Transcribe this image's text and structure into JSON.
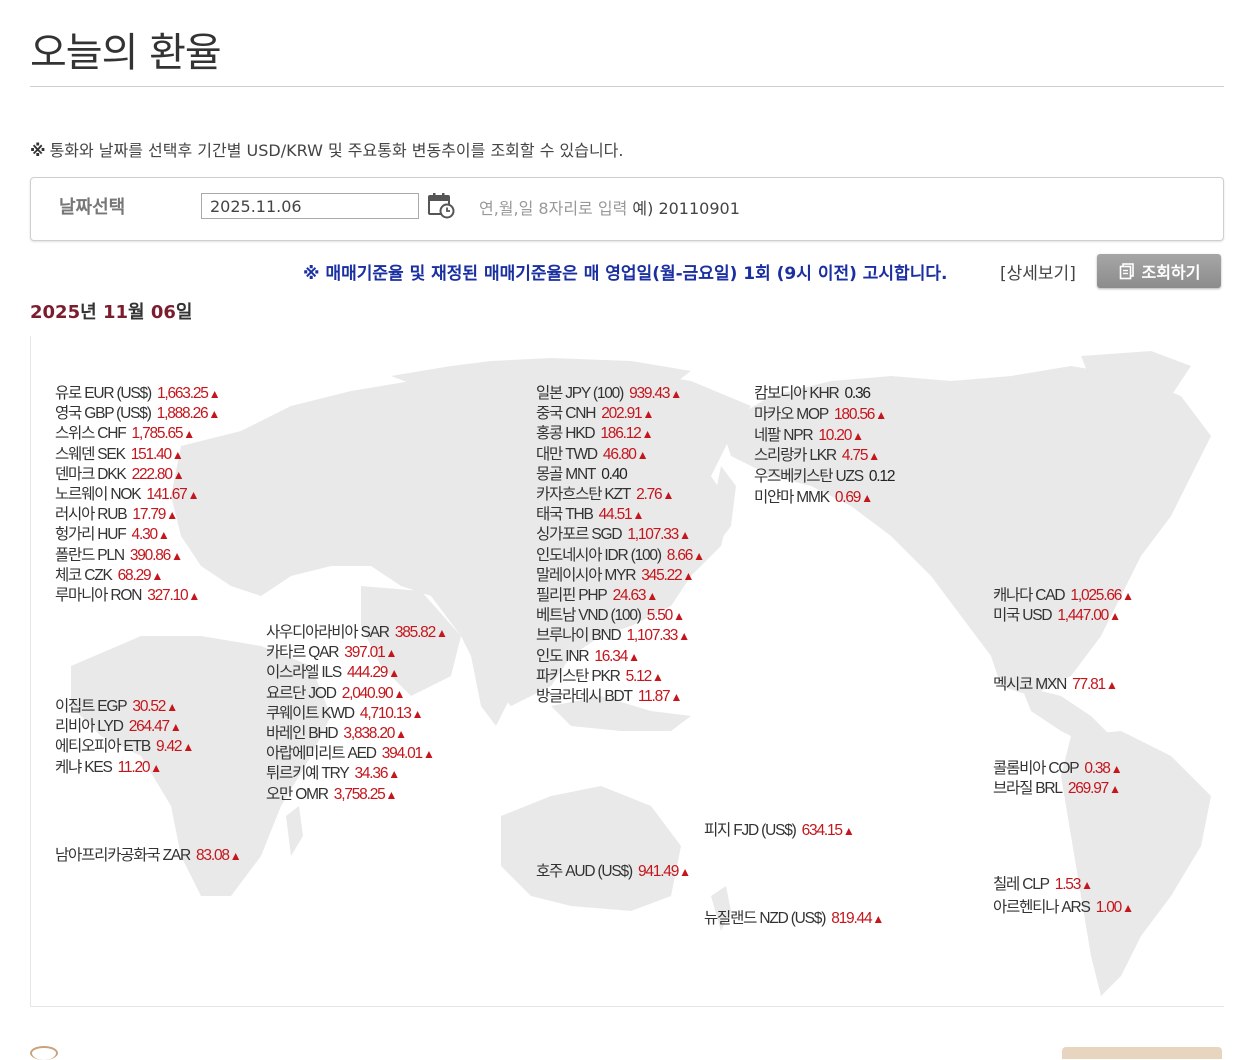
{
  "page": {
    "title": "오늘의 환율",
    "notice_mark": "※",
    "notice": "통화와 날짜를 선택후 기간별 USD/KRW 및 주요통화 변동추이를 조회할 수 있습니다."
  },
  "search": {
    "label": "날짜선택",
    "date_value": "2025.11.06",
    "hint": "연,월,일 8자리로 입력",
    "example": "예) 20110901"
  },
  "announcement": {
    "text": "※ 매매기준율 및 재정된 매매기준율은 매 영업일(월-금요일) 1회 (9시 이전) 고시합니다.",
    "detail_link": "[상세보기]",
    "query_button": "조회하기"
  },
  "display_date": {
    "year": "2025",
    "year_unit": "년 ",
    "month": "11",
    "month_unit": "월 ",
    "day": "06",
    "day_unit": "일"
  },
  "rates": {
    "europe": [
      {
        "label": "유로 EUR (US$)",
        "value": "1,663.25",
        "trend": "up"
      },
      {
        "label": "영국 GBP (US$)",
        "value": "1,888.26",
        "trend": "up"
      },
      {
        "label": "스위스 CHF",
        "value": "1,785.65",
        "trend": "up"
      },
      {
        "label": "스웨덴 SEK",
        "value": "151.40",
        "trend": "up"
      },
      {
        "label": "덴마크 DKK",
        "value": "222.80",
        "trend": "up"
      },
      {
        "label": "노르웨이 NOK",
        "value": "141.67",
        "trend": "up"
      },
      {
        "label": "러시아 RUB",
        "value": "17.79",
        "trend": "up"
      },
      {
        "label": "헝가리 HUF",
        "value": "4.30",
        "trend": "up"
      },
      {
        "label": "폴란드 PLN",
        "value": "390.86",
        "trend": "up"
      },
      {
        "label": "체코 CZK",
        "value": "68.29",
        "trend": "up"
      },
      {
        "label": "루마니아 RON",
        "value": "327.10",
        "trend": "up"
      }
    ],
    "middle_east": [
      {
        "label": "사우디아라비아 SAR",
        "value": "385.82",
        "trend": "up"
      },
      {
        "label": "카타르 QAR",
        "value": "397.01",
        "trend": "up"
      },
      {
        "label": "이스라엘 ILS",
        "value": "444.29",
        "trend": "up"
      },
      {
        "label": "요르단 JOD",
        "value": "2,040.90",
        "trend": "up"
      },
      {
        "label": "쿠웨이트 KWD",
        "value": "4,710.13",
        "trend": "up"
      },
      {
        "label": "바레인 BHD",
        "value": "3,838.20",
        "trend": "up"
      },
      {
        "label": "아랍에미리트 AED",
        "value": "394.01",
        "trend": "up"
      },
      {
        "label": "튀르키예 TRY",
        "value": "34.36",
        "trend": "up"
      },
      {
        "label": "오만 OMR",
        "value": "3,758.25",
        "trend": "up"
      }
    ],
    "africa": [
      {
        "label": "이집트 EGP",
        "value": "30.52",
        "trend": "up"
      },
      {
        "label": "리비아 LYD",
        "value": "264.47",
        "trend": "up"
      },
      {
        "label": "에티오피아 ETB",
        "value": "9.42",
        "trend": "up"
      },
      {
        "label": "케냐 KES",
        "value": "11.20",
        "trend": "up"
      }
    ],
    "south_africa": [
      {
        "label": "남아프리카공화국 ZAR",
        "value": "83.08",
        "trend": "up"
      }
    ],
    "asia": [
      {
        "label": "일본 JPY (100)",
        "value": "939.43",
        "trend": "up"
      },
      {
        "label": "중국 CNH",
        "value": "202.91",
        "trend": "up"
      },
      {
        "label": "홍콩 HKD",
        "value": "186.12",
        "trend": "up"
      },
      {
        "label": "대만 TWD",
        "value": "46.80",
        "trend": "up"
      },
      {
        "label": "몽골 MNT",
        "value": "0.40",
        "trend": "flat"
      },
      {
        "label": "카자흐스탄 KZT",
        "value": "2.76",
        "trend": "up"
      },
      {
        "label": "태국 THB",
        "value": "44.51",
        "trend": "up"
      },
      {
        "label": "싱가포르 SGD",
        "value": "1,107.33",
        "trend": "up"
      },
      {
        "label": "인도네시아 IDR (100)",
        "value": "8.66",
        "trend": "up"
      },
      {
        "label": "말레이시아 MYR",
        "value": "345.22",
        "trend": "up"
      },
      {
        "label": "필리핀 PHP",
        "value": "24.63",
        "trend": "up"
      },
      {
        "label": "베트남 VND (100)",
        "value": "5.50",
        "trend": "up"
      },
      {
        "label": "브루나이 BND",
        "value": "1,107.33",
        "trend": "up"
      },
      {
        "label": "인도 INR",
        "value": "16.34",
        "trend": "up"
      },
      {
        "label": "파키스탄 PKR",
        "value": "5.12",
        "trend": "up"
      },
      {
        "label": "방글라데시 BDT",
        "value": "11.87",
        "trend": "up"
      }
    ],
    "asia2": [
      {
        "label": "캄보디아 KHR",
        "value": "0.36",
        "trend": "flat"
      },
      {
        "label": "마카오 MOP",
        "value": "180.56",
        "trend": "up"
      },
      {
        "label": "네팔 NPR",
        "value": "10.20",
        "trend": "up"
      },
      {
        "label": "스리랑카 LKR",
        "value": "4.75",
        "trend": "up"
      },
      {
        "label": "우즈베키스탄 UZS",
        "value": "0.12",
        "trend": "flat"
      },
      {
        "label": "미얀마 MMK",
        "value": "0.69",
        "trend": "up"
      }
    ],
    "oceania_fiji": [
      {
        "label": "피지 FJD (US$)",
        "value": "634.15",
        "trend": "up"
      }
    ],
    "oceania_aud": [
      {
        "label": "호주 AUD (US$)",
        "value": "941.49",
        "trend": "up"
      }
    ],
    "oceania_nzd": [
      {
        "label": "뉴질랜드 NZD (US$)",
        "value": "819.44",
        "trend": "up"
      }
    ],
    "north_america": [
      {
        "label": "캐나다 CAD",
        "value": "1,025.66",
        "trend": "up"
      },
      {
        "label": "미국 USD",
        "value": "1,447.00",
        "trend": "up"
      }
    ],
    "mexico": [
      {
        "label": "멕시코 MXN",
        "value": "77.81",
        "trend": "up"
      }
    ],
    "south_america1": [
      {
        "label": "콜롬비아 COP",
        "value": "0.38",
        "trend": "up"
      },
      {
        "label": "브라질 BRL",
        "value": "269.97",
        "trend": "up"
      }
    ],
    "south_america2": [
      {
        "label": "칠레 CLP",
        "value": "1.53",
        "trend": "up"
      },
      {
        "label": "아르헨티나 ARS",
        "value": "1.00",
        "trend": "up"
      }
    ]
  },
  "colors": {
    "up": "#c4161c",
    "title_date": "#7a1d2e",
    "notice_blue": "#1a2fa0",
    "map_land": "#e9e9e9"
  },
  "icons": [
    "calendar-icon",
    "document-icon",
    "up-triangle-icon"
  ]
}
